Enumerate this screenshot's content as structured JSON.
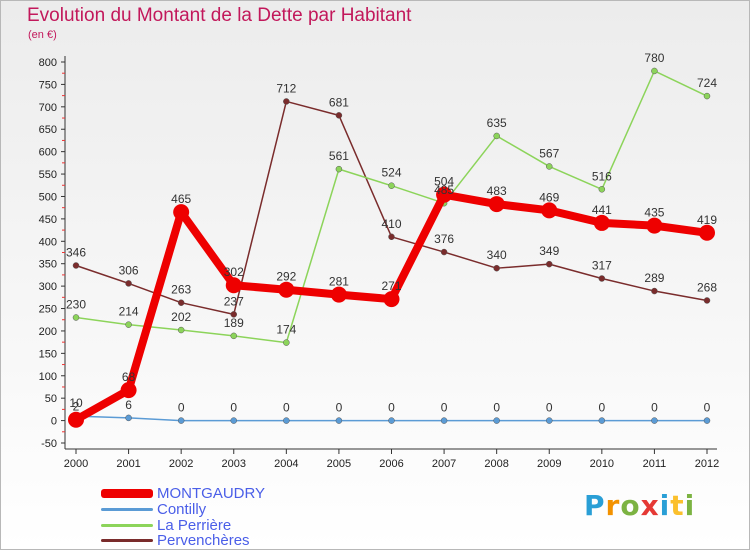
{
  "chart_data": {
    "type": "line",
    "title": "Evolution du Montant de la Dette par Habitant",
    "subtitle": "(en €)",
    "x": [
      "2000",
      "2001",
      "2002",
      "2003",
      "2004",
      "2005",
      "2006",
      "2007",
      "2008",
      "2009",
      "2010",
      "2011",
      "2012"
    ],
    "ylim": [
      -50,
      800
    ],
    "yticks": [
      -50,
      0,
      50,
      100,
      150,
      200,
      250,
      300,
      350,
      400,
      450,
      500,
      550,
      600,
      650,
      700,
      750,
      800
    ],
    "grid": false,
    "legend_position": "bottom-left",
    "series": [
      {
        "name": "MONTGAUDRY",
        "color": "#ee0000",
        "width": 8,
        "marker": 8,
        "values": [
          2,
          68,
          465,
          302,
          292,
          281,
          271,
          504,
          483,
          469,
          441,
          435,
          419
        ],
        "labels": [
          "2",
          "68",
          "465",
          "302",
          "292",
          "281",
          "271",
          "504",
          "483",
          "469",
          "441",
          "435",
          "419"
        ]
      },
      {
        "name": "Contilly",
        "color": "#5b9bd5",
        "width": 1.5,
        "marker": 3,
        "values": [
          10,
          6,
          0,
          0,
          0,
          0,
          0,
          0,
          0,
          0,
          0,
          0,
          0
        ],
        "labels": [
          "10",
          "6",
          "0",
          "0",
          "0",
          "0",
          "0",
          "0",
          "0",
          "0",
          "0",
          "0",
          "0"
        ]
      },
      {
        "name": "La Perrière",
        "color": "#8cd45a",
        "width": 1.5,
        "marker": 3,
        "values": [
          230,
          214,
          202,
          189,
          174,
          561,
          524,
          485,
          635,
          567,
          516,
          780,
          724
        ],
        "labels": [
          "230",
          "214",
          "202",
          "189",
          "174",
          "561",
          "524",
          "485",
          "635",
          "567",
          "516",
          "780",
          "724"
        ]
      },
      {
        "name": "Pervenchères",
        "color": "#7a2c2c",
        "width": 1.5,
        "marker": 3,
        "values": [
          346,
          306,
          263,
          237,
          712,
          681,
          410,
          376,
          340,
          349,
          317,
          289,
          268
        ],
        "labels": [
          "346",
          "306",
          "263",
          "237",
          "712",
          "681",
          "410",
          "376",
          "340",
          "349",
          "317",
          "289",
          "268"
        ]
      }
    ]
  },
  "legend": [
    {
      "label": "MONTGAUDRY",
      "color": "#ee0000",
      "thick": 9
    },
    {
      "label": "Contilly",
      "color": "#5b9bd5",
      "thick": 3
    },
    {
      "label": "La Perrière",
      "color": "#8cd45a",
      "thick": 3
    },
    {
      "label": "Pervenchères",
      "color": "#7a2c2c",
      "thick": 3
    }
  ],
  "logo": {
    "letters": [
      "P",
      "r",
      "o",
      "x",
      "i",
      "t",
      "i"
    ]
  }
}
